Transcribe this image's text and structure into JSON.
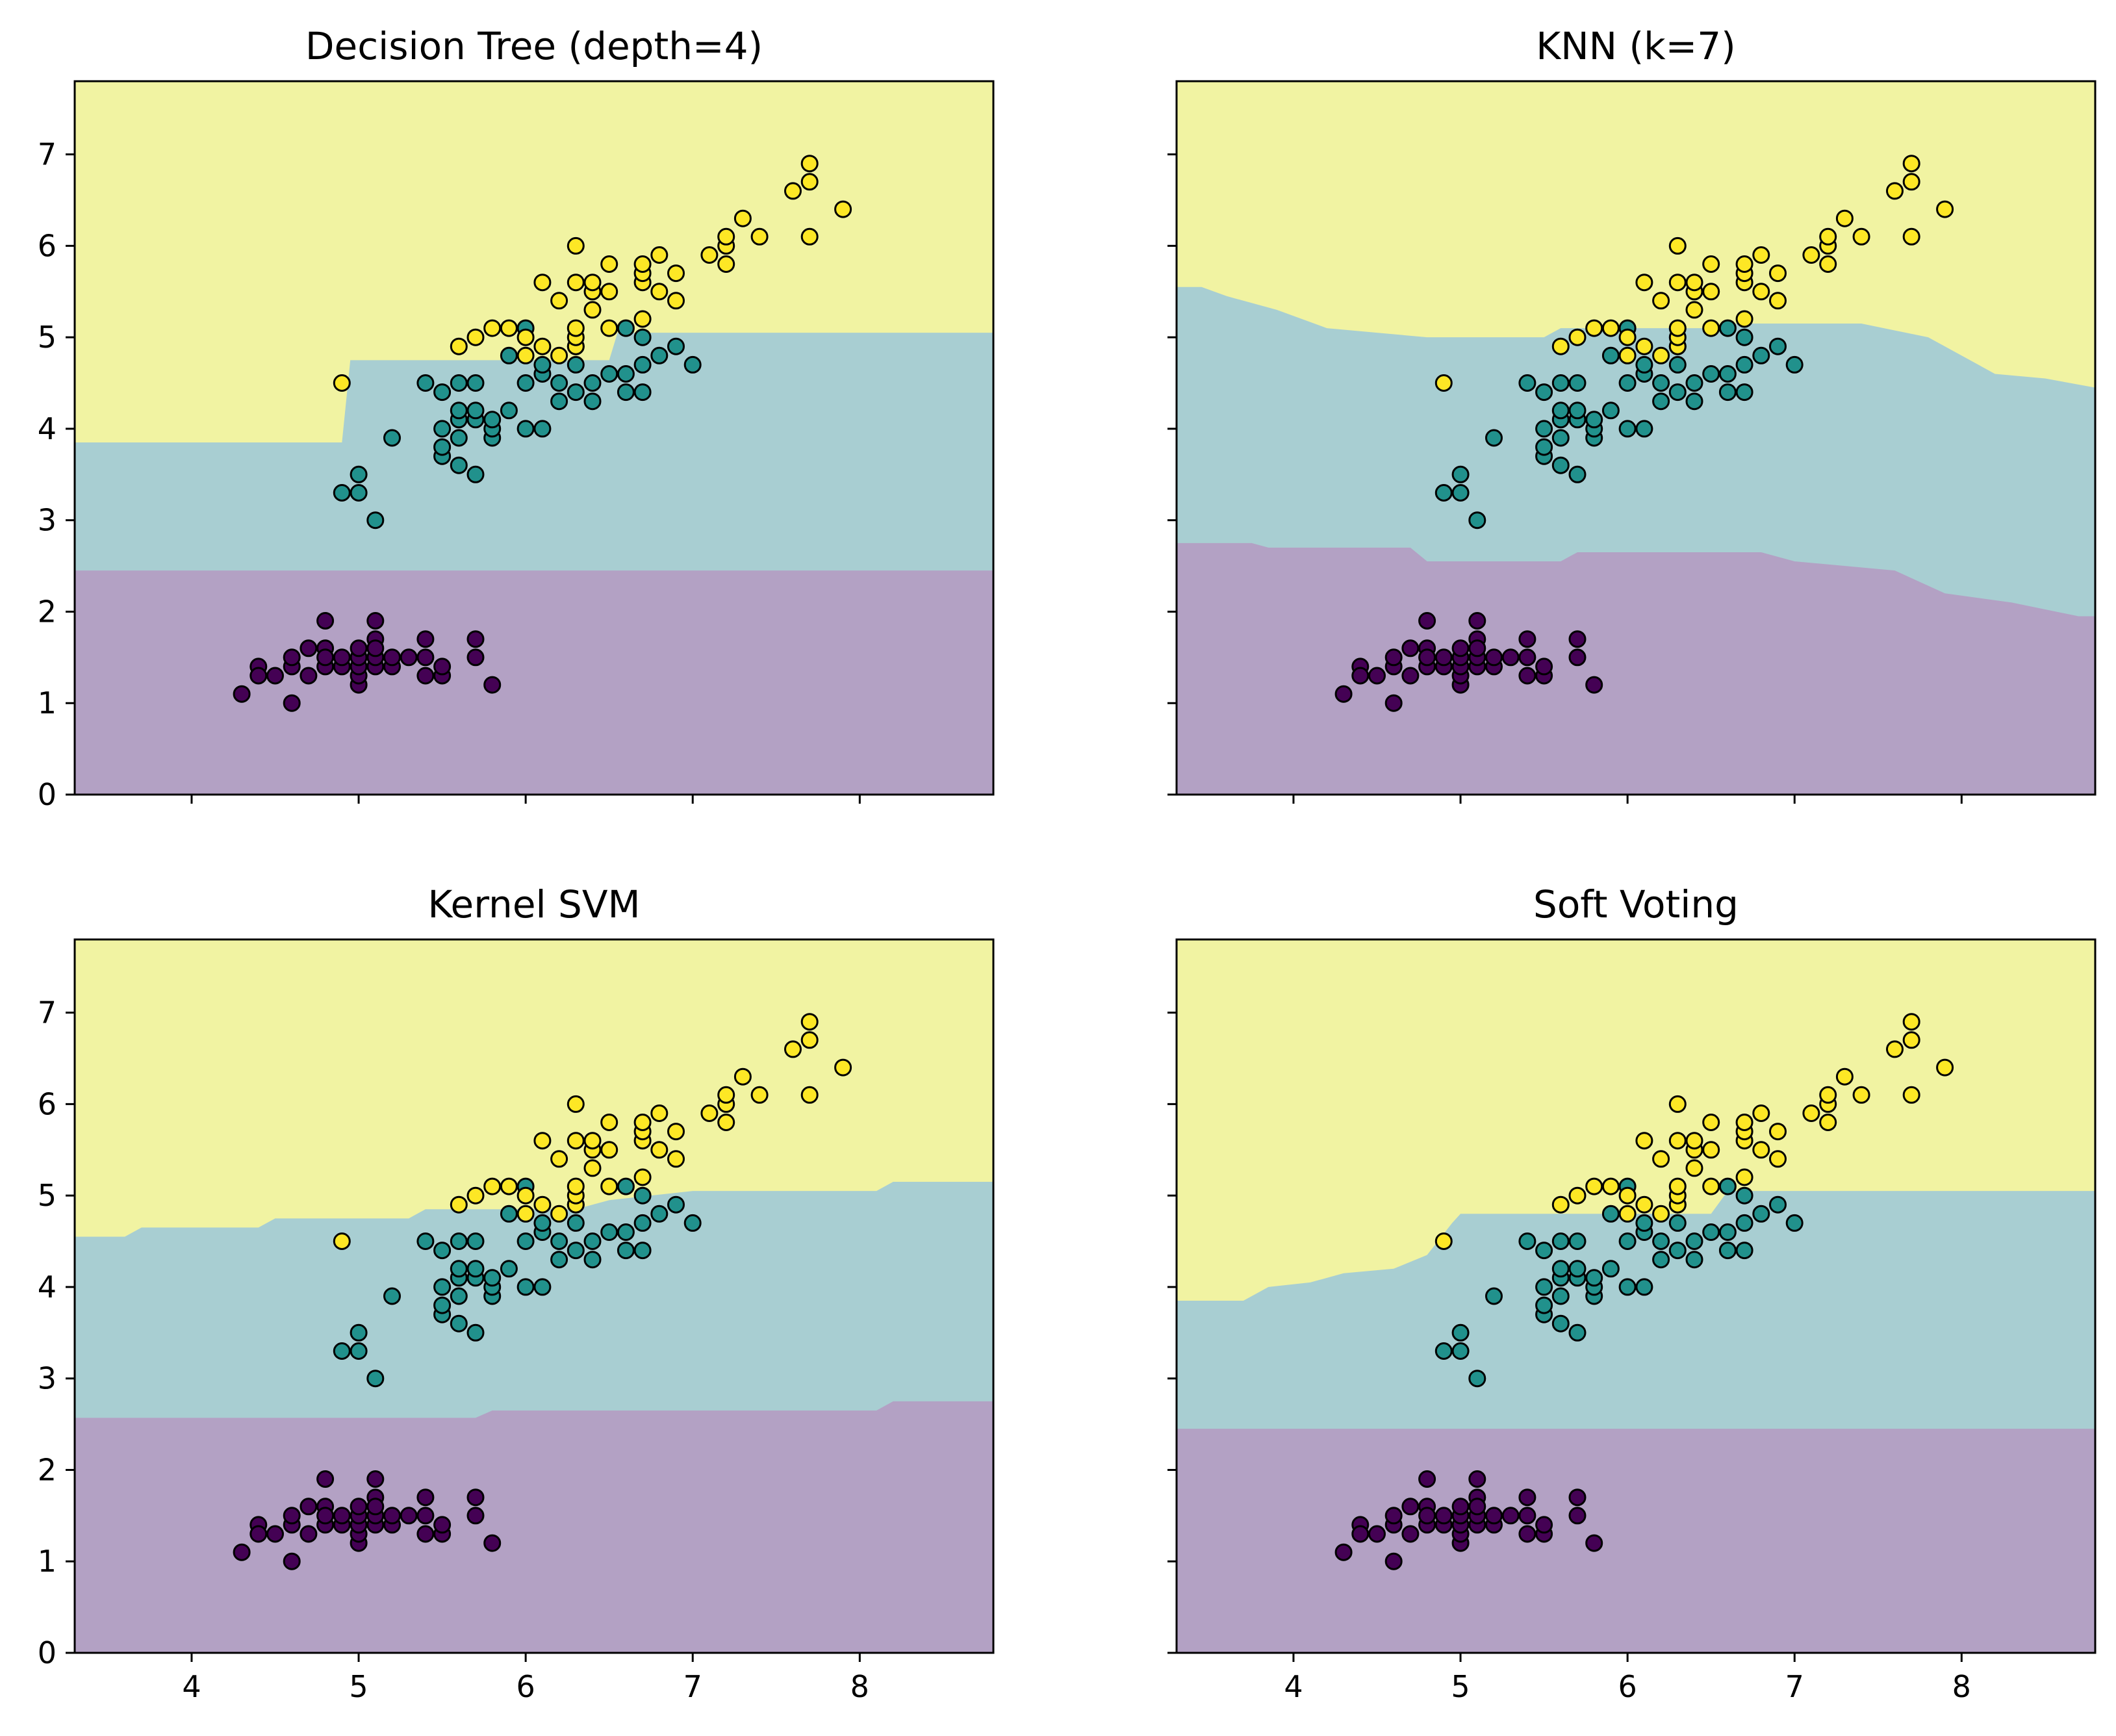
{
  "chart_data": [
    {
      "type": "scatter",
      "title": "Decision Tree (depth=4)",
      "xlim": [
        3.3,
        8.8
      ],
      "ylim": [
        0,
        7.8
      ],
      "xticks": [
        4,
        5,
        6,
        7,
        8
      ],
      "yticks": [
        0,
        1,
        2,
        3,
        4,
        5,
        6,
        7
      ],
      "show_xticklabels": false,
      "show_yticklabels": true,
      "regions": [
        {
          "class": 0,
          "color": "#b3a1c4",
          "upper_boundary": [
            [
              3.3,
              2.45
            ],
            [
              8.8,
              2.45
            ]
          ]
        },
        {
          "class": 1,
          "color": "#a8ced2",
          "upper_boundary": [
            [
              3.3,
              3.85
            ],
            [
              4.9,
              3.85
            ],
            [
              4.95,
              4.75
            ],
            [
              6.5,
              4.75
            ],
            [
              6.55,
              5.05
            ],
            [
              8.8,
              5.05
            ]
          ]
        },
        {
          "class": 2,
          "color": "#f1f3a2"
        }
      ]
    },
    {
      "type": "scatter",
      "title": "KNN (k=7)",
      "xlim": [
        3.3,
        8.8
      ],
      "ylim": [
        0,
        7.8
      ],
      "xticks": [
        4,
        5,
        6,
        7,
        8
      ],
      "yticks": [
        0,
        1,
        2,
        3,
        4,
        5,
        6,
        7
      ],
      "show_xticklabels": false,
      "show_yticklabels": false,
      "regions": [
        {
          "class": 0,
          "color": "#b3a1c4",
          "upper_boundary": [
            [
              3.3,
              2.75
            ],
            [
              3.75,
              2.75
            ],
            [
              3.85,
              2.7
            ],
            [
              4.7,
              2.7
            ],
            [
              4.8,
              2.55
            ],
            [
              5.6,
              2.55
            ],
            [
              5.7,
              2.65
            ],
            [
              6.8,
              2.65
            ],
            [
              7.0,
              2.55
            ],
            [
              7.6,
              2.45
            ],
            [
              7.9,
              2.2
            ],
            [
              8.3,
              2.1
            ],
            [
              8.7,
              1.95
            ],
            [
              8.8,
              1.95
            ]
          ]
        },
        {
          "class": 1,
          "color": "#a8ced2",
          "upper_boundary": [
            [
              3.3,
              5.55
            ],
            [
              3.45,
              5.55
            ],
            [
              3.6,
              5.45
            ],
            [
              3.9,
              5.3
            ],
            [
              4.2,
              5.1
            ],
            [
              4.5,
              5.05
            ],
            [
              4.8,
              5.0
            ],
            [
              5.5,
              5.0
            ],
            [
              5.6,
              5.1
            ],
            [
              6.5,
              5.1
            ],
            [
              6.6,
              5.15
            ],
            [
              7.4,
              5.15
            ],
            [
              7.8,
              5.0
            ],
            [
              8.0,
              4.8
            ],
            [
              8.2,
              4.6
            ],
            [
              8.5,
              4.55
            ],
            [
              8.8,
              4.45
            ]
          ]
        },
        {
          "class": 2,
          "color": "#f1f3a2"
        }
      ]
    },
    {
      "type": "scatter",
      "title": "Kernel SVM",
      "xlim": [
        3.3,
        8.8
      ],
      "ylim": [
        0,
        7.8
      ],
      "xticks": [
        4,
        5,
        6,
        7,
        8
      ],
      "yticks": [
        0,
        1,
        2,
        3,
        4,
        5,
        6,
        7
      ],
      "show_xticklabels": true,
      "show_yticklabels": true,
      "regions": [
        {
          "class": 0,
          "color": "#b3a1c4",
          "upper_boundary": [
            [
              3.3,
              2.57
            ],
            [
              5.7,
              2.57
            ],
            [
              5.8,
              2.65
            ],
            [
              8.1,
              2.65
            ],
            [
              8.2,
              2.75
            ],
            [
              8.8,
              2.75
            ]
          ]
        },
        {
          "class": 1,
          "color": "#a8ced2",
          "upper_boundary": [
            [
              3.3,
              4.55
            ],
            [
              3.6,
              4.55
            ],
            [
              3.7,
              4.65
            ],
            [
              4.4,
              4.65
            ],
            [
              4.5,
              4.75
            ],
            [
              5.3,
              4.75
            ],
            [
              5.4,
              4.85
            ],
            [
              6.3,
              4.85
            ],
            [
              6.5,
              4.95
            ],
            [
              7.0,
              5.05
            ],
            [
              8.1,
              5.05
            ],
            [
              8.2,
              5.15
            ],
            [
              8.8,
              5.15
            ]
          ]
        },
        {
          "class": 2,
          "color": "#f1f3a2"
        }
      ]
    },
    {
      "type": "scatter",
      "title": "Soft Voting",
      "xlim": [
        3.3,
        8.8
      ],
      "ylim": [
        0,
        7.8
      ],
      "xticks": [
        4,
        5,
        6,
        7,
        8
      ],
      "yticks": [
        0,
        1,
        2,
        3,
        4,
        5,
        6,
        7
      ],
      "show_xticklabels": true,
      "show_yticklabels": false,
      "regions": [
        {
          "class": 0,
          "color": "#b3a1c4",
          "upper_boundary": [
            [
              3.3,
              2.45
            ],
            [
              8.8,
              2.45
            ]
          ]
        },
        {
          "class": 1,
          "color": "#a8ced2",
          "upper_boundary": [
            [
              3.3,
              3.85
            ],
            [
              3.7,
              3.85
            ],
            [
              3.85,
              4.0
            ],
            [
              4.1,
              4.05
            ],
            [
              4.3,
              4.15
            ],
            [
              4.6,
              4.2
            ],
            [
              4.8,
              4.35
            ],
            [
              4.95,
              4.7
            ],
            [
              5.0,
              4.8
            ],
            [
              6.5,
              4.8
            ],
            [
              6.6,
              5.05
            ],
            [
              8.8,
              5.05
            ]
          ]
        },
        {
          "class": 2,
          "color": "#f1f3a2"
        }
      ]
    }
  ],
  "points": {
    "class_colors": [
      "#440154",
      "#21918c",
      "#fde725"
    ],
    "class0": [
      [
        4.3,
        1.1
      ],
      [
        4.4,
        1.4
      ],
      [
        4.4,
        1.3
      ],
      [
        4.5,
        1.3
      ],
      [
        4.6,
        1.0
      ],
      [
        4.6,
        1.4
      ],
      [
        4.6,
        1.5
      ],
      [
        4.7,
        1.3
      ],
      [
        4.7,
        1.6
      ],
      [
        4.8,
        1.4
      ],
      [
        4.8,
        1.6
      ],
      [
        4.8,
        1.9
      ],
      [
        4.8,
        1.5
      ],
      [
        4.9,
        1.4
      ],
      [
        4.9,
        1.5
      ],
      [
        5.0,
        1.2
      ],
      [
        5.0,
        1.3
      ],
      [
        5.0,
        1.4
      ],
      [
        5.0,
        1.5
      ],
      [
        5.0,
        1.6
      ],
      [
        5.1,
        1.4
      ],
      [
        5.1,
        1.5
      ],
      [
        5.1,
        1.7
      ],
      [
        5.1,
        1.9
      ],
      [
        5.1,
        1.6
      ],
      [
        5.2,
        1.4
      ],
      [
        5.2,
        1.5
      ],
      [
        5.3,
        1.5
      ],
      [
        5.4,
        1.3
      ],
      [
        5.4,
        1.5
      ],
      [
        5.4,
        1.7
      ],
      [
        5.5,
        1.3
      ],
      [
        5.5,
        1.4
      ],
      [
        5.7,
        1.5
      ],
      [
        5.7,
        1.7
      ],
      [
        5.8,
        1.2
      ]
    ],
    "class1": [
      [
        4.9,
        3.3
      ],
      [
        5.0,
        3.3
      ],
      [
        5.0,
        3.5
      ],
      [
        5.1,
        3.0
      ],
      [
        5.2,
        3.9
      ],
      [
        5.4,
        4.5
      ],
      [
        5.5,
        3.7
      ],
      [
        5.5,
        3.8
      ],
      [
        5.5,
        4.0
      ],
      [
        5.5,
        4.4
      ],
      [
        5.6,
        3.6
      ],
      [
        5.6,
        3.9
      ],
      [
        5.6,
        4.1
      ],
      [
        5.6,
        4.2
      ],
      [
        5.6,
        4.5
      ],
      [
        5.7,
        3.5
      ],
      [
        5.7,
        4.1
      ],
      [
        5.7,
        4.2
      ],
      [
        5.7,
        4.5
      ],
      [
        5.8,
        3.9
      ],
      [
        5.8,
        4.0
      ],
      [
        5.8,
        4.1
      ],
      [
        5.9,
        4.2
      ],
      [
        5.9,
        4.8
      ],
      [
        6.0,
        4.0
      ],
      [
        6.0,
        4.5
      ],
      [
        6.0,
        5.1
      ],
      [
        6.1,
        4.0
      ],
      [
        6.1,
        4.6
      ],
      [
        6.1,
        4.7
      ],
      [
        6.2,
        4.3
      ],
      [
        6.2,
        4.5
      ],
      [
        6.3,
        4.4
      ],
      [
        6.3,
        4.7
      ],
      [
        6.3,
        4.9
      ],
      [
        6.4,
        4.3
      ],
      [
        6.4,
        4.5
      ],
      [
        6.5,
        4.6
      ],
      [
        6.6,
        4.4
      ],
      [
        6.6,
        4.6
      ],
      [
        6.7,
        4.4
      ],
      [
        6.7,
        4.7
      ],
      [
        6.7,
        5.0
      ],
      [
        6.8,
        4.8
      ],
      [
        6.9,
        4.9
      ],
      [
        7.0,
        4.7
      ],
      [
        6.6,
        5.1
      ]
    ],
    "class2": [
      [
        4.9,
        4.5
      ],
      [
        5.6,
        4.9
      ],
      [
        5.7,
        5.0
      ],
      [
        5.8,
        5.1
      ],
      [
        5.9,
        5.1
      ],
      [
        6.0,
        4.8
      ],
      [
        6.0,
        5.0
      ],
      [
        6.1,
        4.9
      ],
      [
        6.1,
        5.6
      ],
      [
        6.2,
        4.8
      ],
      [
        6.2,
        5.4
      ],
      [
        6.3,
        4.9
      ],
      [
        6.3,
        5.0
      ],
      [
        6.3,
        5.1
      ],
      [
        6.3,
        5.6
      ],
      [
        6.3,
        6.0
      ],
      [
        6.4,
        5.3
      ],
      [
        6.4,
        5.5
      ],
      [
        6.4,
        5.6
      ],
      [
        6.5,
        5.1
      ],
      [
        6.5,
        5.5
      ],
      [
        6.5,
        5.8
      ],
      [
        6.7,
        5.2
      ],
      [
        6.7,
        5.6
      ],
      [
        6.7,
        5.7
      ],
      [
        6.7,
        5.8
      ],
      [
        6.8,
        5.5
      ],
      [
        6.8,
        5.9
      ],
      [
        6.9,
        5.4
      ],
      [
        6.9,
        5.7
      ],
      [
        7.1,
        5.9
      ],
      [
        7.2,
        5.8
      ],
      [
        7.2,
        6.0
      ],
      [
        7.2,
        6.1
      ],
      [
        7.3,
        6.3
      ],
      [
        7.4,
        6.1
      ],
      [
        7.6,
        6.6
      ],
      [
        7.7,
        6.1
      ],
      [
        7.7,
        6.7
      ],
      [
        7.7,
        6.9
      ],
      [
        7.9,
        6.4
      ]
    ]
  }
}
